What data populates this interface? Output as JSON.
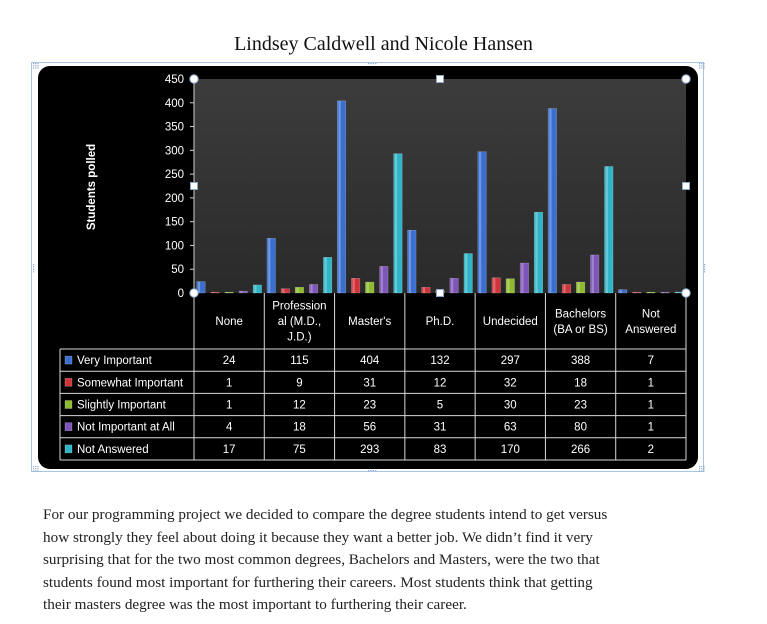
{
  "document": {
    "title": "Lindsey Caldwell and Nicole Hansen",
    "paragraph_lines": [
      "For our programming project we decided to compare the degree students intend to get versus",
      "how strongly they feel about doing it because they want a better job. We didn’t find it very",
      "surprising that for the two most common degrees, Bachelors and Masters, were the two that",
      "students found most important for furthering their careers. Most students think that getting",
      "their masters degree was the most important to furthering their career."
    ]
  },
  "chart_data": {
    "type": "bar",
    "title": "",
    "xlabel": "",
    "ylabel": "Students polled",
    "ylim": [
      0,
      450
    ],
    "yticks": [
      0,
      50,
      100,
      150,
      200,
      250,
      300,
      350,
      400,
      450
    ],
    "grid": false,
    "legend": "data-table",
    "categories": [
      [
        "None"
      ],
      [
        "Profession",
        "al (M.D.,",
        "J.D.)"
      ],
      [
        "Master's"
      ],
      [
        "Ph.D."
      ],
      [
        "Undecided"
      ],
      [
        "Bachelors",
        "(BA or BS)"
      ],
      [
        "Not",
        "Answered"
      ]
    ],
    "series": [
      {
        "name": "Very Important",
        "color": "#3a6fd0",
        "values": [
          24,
          115,
          404,
          132,
          297,
          388,
          7
        ]
      },
      {
        "name": "Somewhat Important",
        "color": "#d0343a",
        "values": [
          1,
          9,
          31,
          12,
          32,
          18,
          1
        ]
      },
      {
        "name": "Slightly Important",
        "color": "#8fbc2e",
        "values": [
          1,
          12,
          23,
          5,
          30,
          23,
          1
        ]
      },
      {
        "name": "Not Important at All",
        "color": "#7e55b8",
        "values": [
          4,
          18,
          56,
          31,
          63,
          80,
          1
        ]
      },
      {
        "name": "Not Answered",
        "color": "#2fb4c8",
        "values": [
          17,
          75,
          293,
          83,
          170,
          266,
          2
        ]
      }
    ]
  }
}
